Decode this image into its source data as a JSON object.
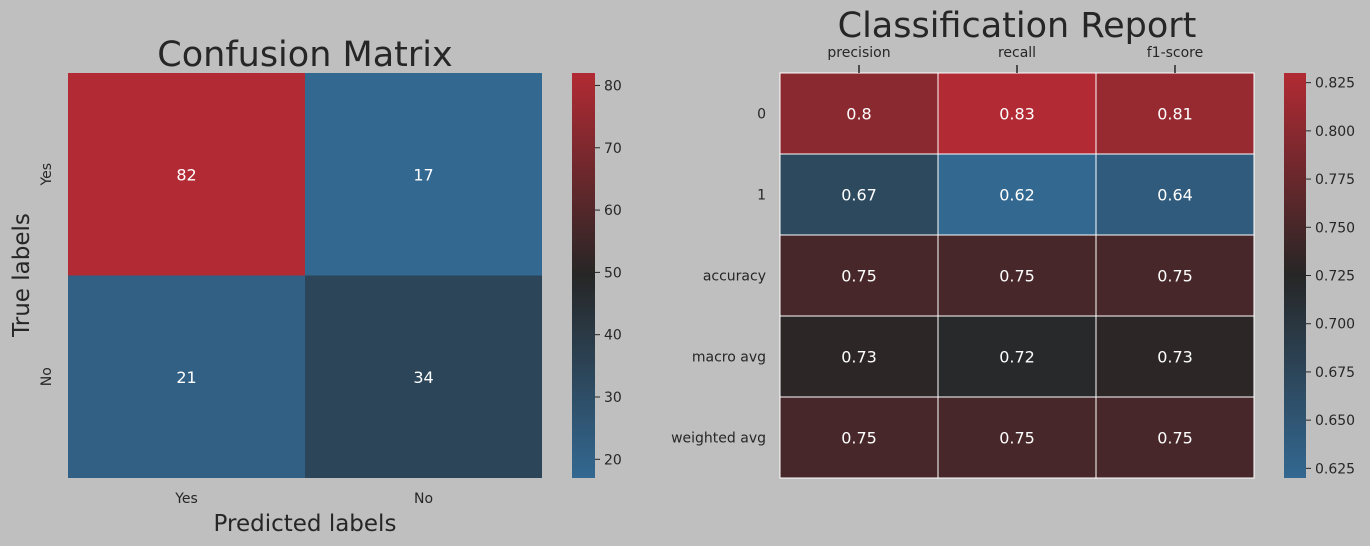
{
  "chart_data": [
    {
      "type": "heatmap",
      "title": "Confusion Matrix",
      "xlabel": "Predicted labels",
      "ylabel": "True labels",
      "x_categories": [
        "Yes",
        "No"
      ],
      "y_categories": [
        "Yes",
        "No"
      ],
      "values": [
        [
          82,
          17
        ],
        [
          21,
          34
        ]
      ],
      "colorbar": {
        "min": 17,
        "max": 82,
        "ticks": [
          20,
          30,
          40,
          50,
          60,
          70,
          80
        ]
      },
      "colormap": [
        "#336891",
        "#262626",
        "#b22a33"
      ],
      "grid": false,
      "x_ticks_position": "bottom"
    },
    {
      "type": "heatmap",
      "title": "Classification Report",
      "xlabel": "",
      "ylabel": "",
      "x_categories": [
        "precision",
        "recall",
        "f1-score"
      ],
      "y_categories": [
        "0",
        "1",
        "accuracy",
        "macro avg",
        "weighted avg"
      ],
      "values": [
        [
          0.8,
          0.83,
          0.81
        ],
        [
          0.67,
          0.62,
          0.64
        ],
        [
          0.75,
          0.75,
          0.75
        ],
        [
          0.73,
          0.72,
          0.73
        ],
        [
          0.75,
          0.75,
          0.75
        ]
      ],
      "colorbar": {
        "min": 0.62,
        "max": 0.83,
        "ticks": [
          0.625,
          0.65,
          0.675,
          0.7,
          0.725,
          0.75,
          0.775,
          0.8,
          0.825
        ]
      },
      "colormap": [
        "#336891",
        "#262626",
        "#b22a33"
      ],
      "cell_borders": "#ffffff",
      "grid": false,
      "x_ticks_position": "top"
    }
  ]
}
